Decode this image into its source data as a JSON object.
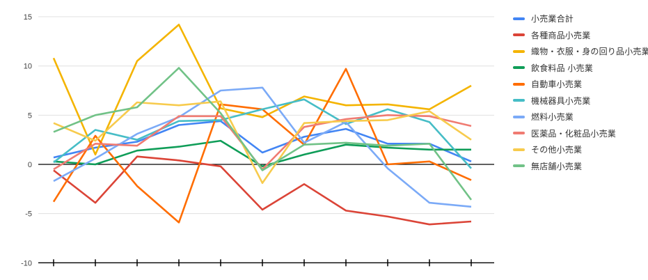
{
  "chart_data": {
    "type": "line",
    "title": "",
    "xlabel": "",
    "ylabel": "",
    "x_tick_labels": [
      "",
      "",
      "",
      "",
      "",
      "",
      "",
      "",
      "",
      "",
      ""
    ],
    "y_ticks": [
      15,
      10,
      5,
      0,
      -5,
      -10
    ],
    "ylim": [
      -10,
      15
    ],
    "grid": true,
    "zero_baseline": true,
    "legend_position": "right",
    "gridline_color": "#e0e0e0",
    "axis_color": "#000000",
    "label_color": "#404040",
    "series": [
      {
        "name": "小売業合計",
        "color": "#4285F4",
        "values": [
          0.7,
          1.7,
          2.3,
          4.0,
          4.4,
          1.2,
          2.8,
          3.6,
          2.1,
          2.1,
          0.3
        ]
      },
      {
        "name": "各種商品小売業",
        "color": "#DB4437",
        "values": [
          -0.6,
          -3.9,
          0.8,
          0.4,
          -0.2,
          -4.6,
          -2.0,
          -4.7,
          -5.3,
          -6.1,
          -5.8
        ]
      },
      {
        "name": "織物・衣服・身の回り品小売業",
        "color": "#F4B400",
        "values": [
          10.8,
          1.0,
          10.5,
          14.2,
          5.7,
          4.8,
          6.9,
          6.0,
          6.1,
          5.6,
          8.0
        ]
      },
      {
        "name": "飲食料品 小売業",
        "color": "#0F9D58",
        "values": [
          0.3,
          0.0,
          1.4,
          1.8,
          2.4,
          -0.2,
          1.0,
          2.0,
          1.7,
          1.5,
          1.5
        ]
      },
      {
        "name": "自動車小売業",
        "color": "#FF6D01",
        "values": [
          -3.8,
          2.9,
          -2.2,
          -5.9,
          6.1,
          5.6,
          2.0,
          9.7,
          0.0,
          0.3,
          -1.6
        ]
      },
      {
        "name": "機械器具小売業",
        "color": "#46BDC6",
        "values": [
          0.2,
          3.5,
          2.5,
          4.4,
          4.5,
          5.6,
          6.6,
          4.1,
          5.6,
          4.3,
          -0.4
        ]
      },
      {
        "name": "燃料小売業",
        "color": "#7BAAF7",
        "values": [
          -1.7,
          0.6,
          3.1,
          4.8,
          7.5,
          7.8,
          2.2,
          4.3,
          -0.4,
          -3.9,
          -4.3
        ]
      },
      {
        "name": "医薬品・化粧品小売業",
        "color": "#F07B72",
        "values": [
          -0.5,
          2.1,
          1.9,
          4.9,
          4.9,
          -0.5,
          3.8,
          4.6,
          5.0,
          4.9,
          3.9
        ]
      },
      {
        "name": "その他小売業",
        "color": "#F7CB4D",
        "values": [
          4.2,
          2.4,
          6.3,
          6.0,
          6.4,
          -1.9,
          4.2,
          4.4,
          4.5,
          5.4,
          2.5
        ]
      },
      {
        "name": "無店舗小売業",
        "color": "#71C287",
        "values": [
          3.3,
          5.0,
          5.8,
          9.8,
          5.2,
          -0.6,
          2.0,
          2.2,
          1.9,
          2.1,
          -3.6
        ]
      }
    ]
  }
}
